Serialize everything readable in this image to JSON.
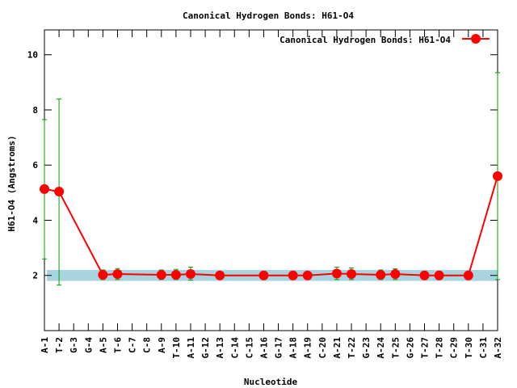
{
  "chart_data": {
    "type": "line",
    "title": "Canonical Hydrogen Bonds: H61-O4",
    "xlabel": "Nucleotide",
    "ylabel": "H61-O4 (Angstroms)",
    "ylim": [
      0,
      10.9
    ],
    "yticks": [
      2,
      4,
      6,
      8,
      10
    ],
    "grid": false,
    "legend_position": "top-right",
    "reference_band": {
      "y_low": 1.8,
      "y_high": 2.2,
      "color": "#a8d4e0"
    },
    "categories": [
      "A-1",
      "T-2",
      "G-3",
      "G-4",
      "A-5",
      "T-6",
      "C-7",
      "C-8",
      "A-9",
      "T-10",
      "A-11",
      "G-12",
      "A-13",
      "C-14",
      "C-15",
      "A-16",
      "G-17",
      "A-18",
      "A-19",
      "C-20",
      "A-21",
      "T-22",
      "G-23",
      "A-24",
      "T-25",
      "G-26",
      "T-27",
      "T-28",
      "C-29",
      "T-30",
      "C-31",
      "A-32"
    ],
    "series": [
      {
        "name": "Canonical Hydrogen Bonds: H61-O4",
        "color": "#ff0000",
        "errorbar_color": "#00a000",
        "points": [
          {
            "x": "A-1",
            "y": 5.13,
            "err_low": 2.6,
            "err_high": 7.65
          },
          {
            "x": "T-2",
            "y": 5.04,
            "err_low": 1.65,
            "err_high": 8.4
          },
          {
            "x": "A-5",
            "y": 2.02,
            "err_low": 1.85,
            "err_high": 2.2
          },
          {
            "x": "T-6",
            "y": 2.05,
            "err_low": 1.85,
            "err_high": 2.25
          },
          {
            "x": "A-9",
            "y": 2.02,
            "err_low": 1.85,
            "err_high": 2.2
          },
          {
            "x": "T-10",
            "y": 2.02,
            "err_low": 1.85,
            "err_high": 2.22
          },
          {
            "x": "A-11",
            "y": 2.05,
            "err_low": 1.83,
            "err_high": 2.3
          },
          {
            "x": "A-13",
            "y": 2.0,
            "err_low": 1.88,
            "err_high": 2.12
          },
          {
            "x": "A-16",
            "y": 2.0,
            "err_low": 1.85,
            "err_high": 2.15
          },
          {
            "x": "A-18",
            "y": 2.0,
            "err_low": 1.85,
            "err_high": 2.15
          },
          {
            "x": "A-19",
            "y": 2.0,
            "err_low": 1.88,
            "err_high": 2.12
          },
          {
            "x": "A-21",
            "y": 2.07,
            "err_low": 1.85,
            "err_high": 2.3
          },
          {
            "x": "T-22",
            "y": 2.05,
            "err_low": 1.85,
            "err_high": 2.27
          },
          {
            "x": "A-24",
            "y": 2.02,
            "err_low": 1.85,
            "err_high": 2.2
          },
          {
            "x": "T-25",
            "y": 2.05,
            "err_low": 1.85,
            "err_high": 2.24
          },
          {
            "x": "T-27",
            "y": 2.0,
            "err_low": 1.85,
            "err_high": 2.15
          },
          {
            "x": "T-28",
            "y": 2.0,
            "err_low": 1.85,
            "err_high": 2.15
          },
          {
            "x": "T-30",
            "y": 2.0,
            "err_low": 1.85,
            "err_high": 2.15
          },
          {
            "x": "A-32",
            "y": 5.6,
            "err_low": 1.85,
            "err_high": 9.35
          }
        ]
      }
    ]
  }
}
